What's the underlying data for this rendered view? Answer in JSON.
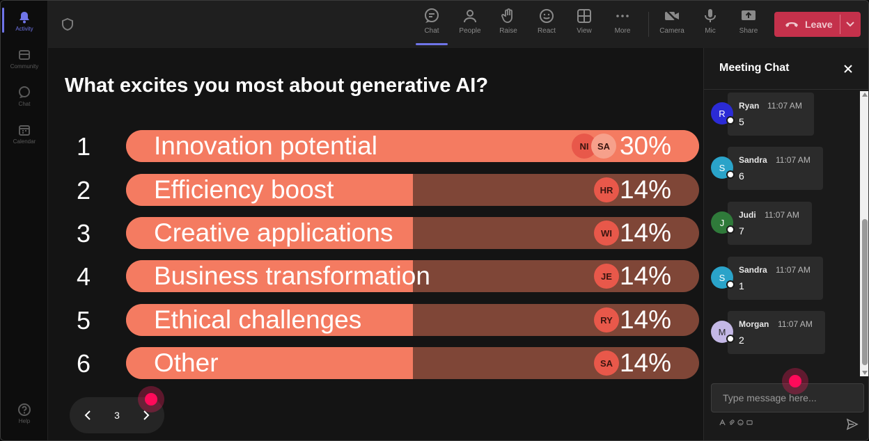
{
  "rail": {
    "items": [
      {
        "label": "Activity",
        "icon": "bell-icon"
      },
      {
        "label": "Community",
        "icon": "community-icon"
      },
      {
        "label": "Chat",
        "icon": "chat-icon"
      },
      {
        "label": "Calendar",
        "icon": "calendar-icon"
      },
      {
        "label": "Help",
        "icon": "help-icon"
      }
    ]
  },
  "toolbar": {
    "chat": "Chat",
    "people": "People",
    "raise": "Raise",
    "react": "React",
    "view": "View",
    "more": "More",
    "camera": "Camera",
    "mic": "Mic",
    "share": "Share",
    "leave": "Leave"
  },
  "poll": {
    "question": "What excites you most about generative AI?",
    "options": [
      {
        "num": "1",
        "label": "Innovation potential",
        "percent_text": "30%",
        "percent": 30,
        "avatars": [
          "NI",
          "SA"
        ]
      },
      {
        "num": "2",
        "label": "Efficiency boost",
        "percent_text": "14%",
        "percent": 14,
        "avatars": [
          "HR"
        ]
      },
      {
        "num": "3",
        "label": "Creative applications",
        "percent_text": "14%",
        "percent": 14,
        "avatars": [
          "WI"
        ]
      },
      {
        "num": "4",
        "label": "Business transformation",
        "percent_text": "14%",
        "percent": 14,
        "avatars": [
          "JE"
        ]
      },
      {
        "num": "5",
        "label": "Ethical challenges",
        "percent_text": "14%",
        "percent": 14,
        "avatars": [
          "RY"
        ]
      },
      {
        "num": "6",
        "label": "Other",
        "percent_text": "14%",
        "percent": 14,
        "avatars": [
          "SA"
        ]
      }
    ],
    "page": "3"
  },
  "chat": {
    "title": "Meeting Chat",
    "messages": [
      {
        "initial": "R",
        "name": "Ryan",
        "time": "11:07 AM",
        "text": "5",
        "color": "#2b2bd6"
      },
      {
        "initial": "S",
        "name": "Sandra",
        "time": "11:07 AM",
        "text": "6",
        "color": "#2aa3c9"
      },
      {
        "initial": "J",
        "name": "Judi",
        "time": "11:07 AM",
        "text": "7",
        "color": "#2f7a3a"
      },
      {
        "initial": "S",
        "name": "Sandra",
        "time": "11:07 AM",
        "text": "1",
        "color": "#2aa3c9"
      },
      {
        "initial": "M",
        "name": "Morgan",
        "time": "11:07 AM",
        "text": "2",
        "color": "#c4b8e6"
      }
    ],
    "placeholder": "Type message here..."
  },
  "colors": {
    "accent": "#6f74e8",
    "bar_fill": "#f47b61",
    "bar_track": "#7f4637",
    "leave": "#c4314b",
    "cursor": "#ff0a5a"
  }
}
